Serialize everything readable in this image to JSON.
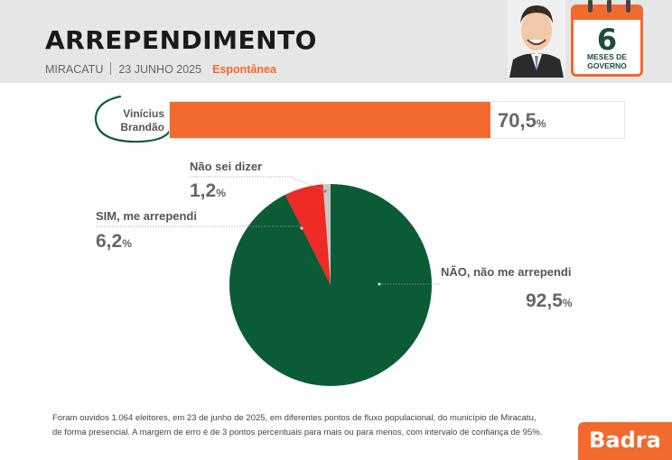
{
  "header": {
    "title": "ARREPENDIMENTO",
    "city": "MIRACATU",
    "date": "23 JUNHO 2025",
    "tag": "Espontânea"
  },
  "calendar": {
    "number": "6",
    "label": "MESES DE GOVERNO"
  },
  "candidate": {
    "name_line1": "Vinícius",
    "name_line2": "Brandão",
    "value": "70,5",
    "unit": "%"
  },
  "chart_data": {
    "type": "pie",
    "slices": [
      {
        "label": "NÃO, não me arrependi",
        "value": 92.5,
        "display": "92,5",
        "color": "#0b5c36"
      },
      {
        "label": "SIM, me arrependi",
        "value": 6.2,
        "display": "6,2",
        "color": "#ee2a24"
      },
      {
        "label": "Não sei dizer",
        "value": 1.2,
        "display": "1,2",
        "color": "#c8c8c8"
      }
    ],
    "bar": {
      "label": "Vinícius Brandão",
      "value": 70.5,
      "color": "#f26a2e"
    }
  },
  "footnote": {
    "line1": "Foram ouvidos 1.064 eleitores, em 23 de junho de 2025, em diferentes pontos de fluxo populacional, do município de Miracatu,",
    "line2": "de forma presencial. A margem de erro é de 3 pontos percentuais para mais ou para menos, com intervalo de confiança de 95%."
  },
  "logo": "Badra"
}
